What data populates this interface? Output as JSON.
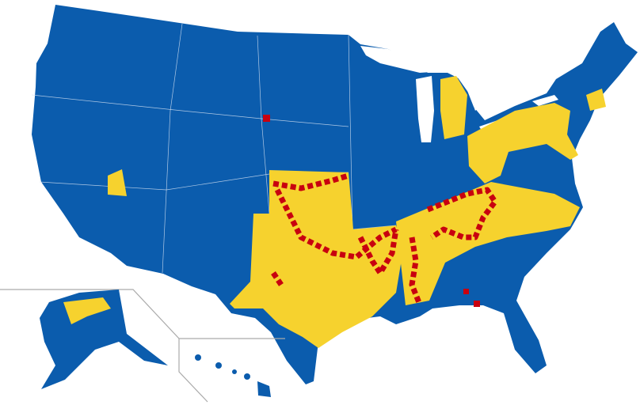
{
  "map": {
    "colors": {
      "base": "#0b5cad",
      "middle": "#f6d22e",
      "top": "#c8000f"
    }
  }
}
